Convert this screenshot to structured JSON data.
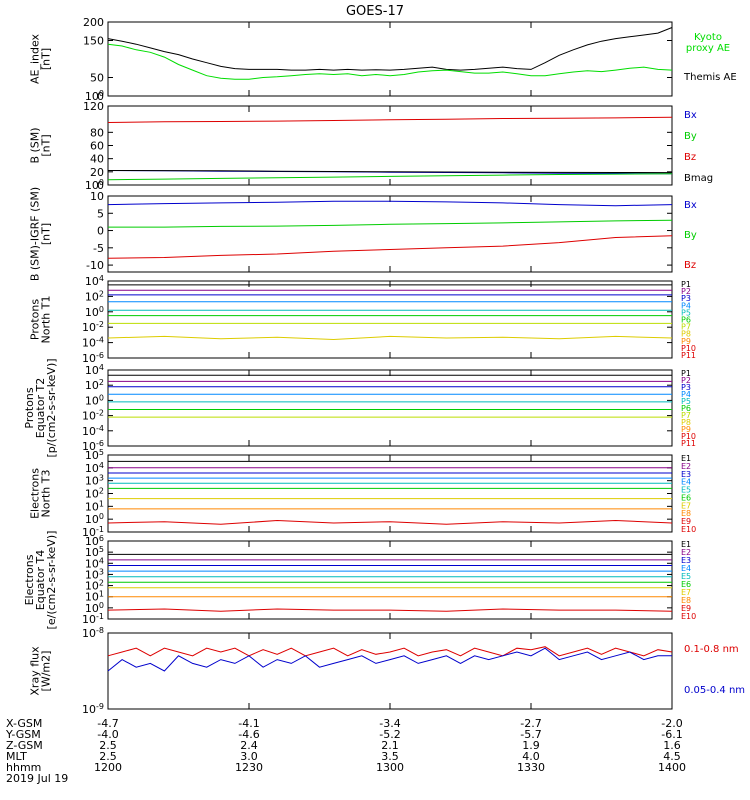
{
  "title": "GOES-17",
  "chart_data": [
    {
      "type": "line",
      "ylabel": [
        "AE_index",
        "[nT]"
      ],
      "ylim": [
        0,
        200
      ],
      "yticks": [
        "0",
        "50",
        "100",
        "150",
        "200"
      ],
      "x_hhmm": [
        1200,
        1203,
        1206,
        1209,
        1212,
        1215,
        1218,
        1221,
        1224,
        1227,
        1230,
        1233,
        1236,
        1239,
        1242,
        1245,
        1248,
        1251,
        1254,
        1257,
        1300,
        1303,
        1306,
        1309,
        1312,
        1315,
        1318,
        1321,
        1324,
        1327,
        1330,
        1333,
        1336,
        1339,
        1342,
        1345,
        1348,
        1351,
        1354,
        1357,
        1400
      ],
      "series": [
        {
          "name": "Themis AE",
          "color": "#000000",
          "values": [
            155,
            148,
            140,
            130,
            120,
            112,
            100,
            90,
            80,
            74,
            72,
            72,
            72,
            70,
            70,
            72,
            70,
            72,
            70,
            71,
            70,
            72,
            75,
            78,
            72,
            70,
            72,
            75,
            78,
            74,
            72,
            90,
            110,
            125,
            138,
            148,
            155,
            160,
            165,
            170,
            185
          ]
        },
        {
          "name": "Kyoto proxy AE",
          "color": "#00dd00",
          "values": [
            140,
            135,
            125,
            118,
            105,
            85,
            70,
            55,
            48,
            45,
            45,
            50,
            52,
            55,
            58,
            60,
            58,
            60,
            55,
            58,
            55,
            58,
            65,
            68,
            70,
            66,
            62,
            62,
            65,
            60,
            55,
            55,
            60,
            65,
            68,
            66,
            70,
            75,
            78,
            72,
            70
          ]
        }
      ]
    },
    {
      "type": "line",
      "ylabel": [
        "B (SM)",
        "[nT]"
      ],
      "ylim": [
        0,
        120
      ],
      "yticks": [
        "0",
        "20",
        "40",
        "60",
        "80",
        "100",
        "120"
      ],
      "series": [
        {
          "name": "Bx",
          "color": "#0000cc",
          "values": [
            22,
            21.5,
            21,
            20.5,
            20,
            19.5,
            19,
            18.5,
            18,
            17.5,
            17
          ]
        },
        {
          "name": "By",
          "color": "#00cc00",
          "values": [
            8,
            9,
            10,
            11,
            12,
            13,
            14,
            15,
            16,
            16.5,
            17
          ]
        },
        {
          "name": "Bz",
          "color": "#dd0000",
          "values": [
            95,
            96,
            96.5,
            97,
            98,
            99,
            100,
            101,
            101.5,
            102,
            103
          ]
        },
        {
          "name": "Bmag",
          "color": "#000000",
          "values": [
            22,
            21.8,
            21.5,
            21,
            20.5,
            20,
            19.8,
            19.5,
            19.2,
            19,
            18.8
          ]
        }
      ]
    },
    {
      "type": "line",
      "ylabel": [
        "B (SM)-IGRF (SM)",
        "[nT]"
      ],
      "ylim": [
        -12,
        10
      ],
      "yticks": [
        "-10",
        "-5",
        "0",
        "5",
        "10"
      ],
      "series": [
        {
          "name": "Bx",
          "color": "#0000cc",
          "values": [
            7.5,
            7.8,
            8,
            8.2,
            8.5,
            8.5,
            8.3,
            8,
            7.5,
            7.2,
            7.5
          ]
        },
        {
          "name": "By",
          "color": "#00cc00",
          "values": [
            1,
            1,
            1.2,
            1.3,
            1.5,
            1.8,
            2,
            2.2,
            2.5,
            2.8,
            3
          ]
        },
        {
          "name": "Bz",
          "color": "#dd0000",
          "values": [
            -8,
            -7.8,
            -7.2,
            -6.8,
            -6,
            -5.5,
            -5,
            -4.5,
            -3.5,
            -2,
            -1.5
          ]
        }
      ]
    },
    {
      "type": "line",
      "ylabel": [
        "Protons",
        "North T1"
      ],
      "yscale": "log",
      "ylim": [
        -6,
        4
      ],
      "yticks": [
        "10-6",
        "10-4",
        "10-2",
        "100",
        "102",
        "104"
      ],
      "series": [
        {
          "name": "P1",
          "color": "#000000",
          "values": [
            3.5,
            3.5
          ]
        },
        {
          "name": "P2",
          "color": "#880088",
          "values": [
            2.8,
            2.8
          ]
        },
        {
          "name": "P3",
          "color": "#0000cc",
          "values": [
            2.2,
            2.2
          ]
        },
        {
          "name": "P4",
          "color": "#0088ff",
          "values": [
            1.3,
            1.3
          ]
        },
        {
          "name": "P5",
          "color": "#00bbbb",
          "values": [
            0.2,
            0.2
          ]
        },
        {
          "name": "P6",
          "color": "#00cc00",
          "values": [
            -0.5,
            -0.5
          ]
        },
        {
          "name": "P7",
          "color": "#bbdd00",
          "values": [
            -1.5,
            -1.5
          ]
        },
        {
          "name": "P8",
          "color": "#ddcc00",
          "values": [
            -3.4,
            -3.2,
            -3.5,
            -3.3,
            -3.6,
            -3.2,
            -3.4,
            -3.3,
            -3.5,
            -3.2,
            -3.4
          ]
        }
      ],
      "legend": [
        "P1",
        "P2",
        "P3",
        "P4",
        "P5",
        "P6",
        "P7",
        "P8",
        "P9",
        "P10",
        "P11"
      ]
    },
    {
      "type": "line",
      "ylabel": [
        "Protons",
        "Equator T2",
        "[p/(cm2-s-sr-keV)]"
      ],
      "yscale": "log",
      "ylim": [
        -6,
        4
      ],
      "yticks": [
        "10-6",
        "10-4",
        "10-2",
        "100",
        "102",
        "104"
      ],
      "series": [
        {
          "name": "P1",
          "color": "#000000",
          "values": [
            3.3,
            3.3
          ]
        },
        {
          "name": "P2",
          "color": "#880088",
          "values": [
            2.5,
            2.5
          ]
        },
        {
          "name": "P3",
          "color": "#0000cc",
          "values": [
            1.8,
            1.8
          ]
        },
        {
          "name": "P4",
          "color": "#0088ff",
          "values": [
            0.8,
            0.8
          ]
        },
        {
          "name": "P5",
          "color": "#00bbbb",
          "values": [
            -0.2,
            -0.2
          ]
        },
        {
          "name": "P6",
          "color": "#00cc00",
          "values": [
            -1.2,
            -1.2
          ]
        },
        {
          "name": "P7",
          "color": "#bbdd00",
          "values": [
            -2.2,
            -2.2
          ]
        }
      ],
      "legend": [
        "P1",
        "P2",
        "P3",
        "P4",
        "P5",
        "P6",
        "P7",
        "P8",
        "P9",
        "P10",
        "P11"
      ]
    },
    {
      "type": "line",
      "ylabel": [
        "Electrons",
        "North T3"
      ],
      "yscale": "log",
      "ylim": [
        -1,
        5
      ],
      "yticks": [
        "10-1",
        "100",
        "101",
        "102",
        "103",
        "104",
        "105"
      ],
      "series": [
        {
          "name": "E1",
          "color": "#000000",
          "values": [
            4.5,
            4.5
          ]
        },
        {
          "name": "E2",
          "color": "#880088",
          "values": [
            4,
            4
          ]
        },
        {
          "name": "E3",
          "color": "#0000cc",
          "values": [
            3.6,
            3.6
          ]
        },
        {
          "name": "E4",
          "color": "#0088ff",
          "values": [
            3.2,
            3.2
          ]
        },
        {
          "name": "E5",
          "color": "#00bbbb",
          "values": [
            2.8,
            2.8
          ]
        },
        {
          "name": "E6",
          "color": "#00cc00",
          "values": [
            2.4,
            2.4
          ]
        },
        {
          "name": "E7",
          "color": "#ddcc00",
          "values": [
            1.6,
            1.6
          ]
        },
        {
          "name": "E8",
          "color": "#ff8800",
          "values": [
            0.8,
            0.8
          ]
        },
        {
          "name": "E10",
          "color": "#dd0000",
          "values": [
            -0.3,
            -0.2,
            -0.4,
            -0.1,
            -0.3,
            -0.2,
            -0.4,
            -0.2,
            -0.3,
            -0.1,
            -0.3
          ]
        }
      ],
      "legend": [
        "E1",
        "E2",
        "E3",
        "E4",
        "E5",
        "E6",
        "E7",
        "E8",
        "E9",
        "E10"
      ]
    },
    {
      "type": "line",
      "ylabel": [
        "Electrons",
        "Equator T4",
        "[e/(cm2-s-sr-keV)]"
      ],
      "yscale": "log",
      "ylim": [
        -1,
        6
      ],
      "yticks": [
        "10-1",
        "100",
        "101",
        "102",
        "103",
        "104",
        "105",
        "106"
      ],
      "series": [
        {
          "name": "E1",
          "color": "#000000",
          "values": [
            4.8,
            4.8
          ]
        },
        {
          "name": "E2",
          "color": "#880088",
          "values": [
            4.3,
            4.3
          ]
        },
        {
          "name": "E3",
          "color": "#0000cc",
          "values": [
            3.8,
            3.8
          ]
        },
        {
          "name": "E4",
          "color": "#0088ff",
          "values": [
            3.3,
            3.3
          ]
        },
        {
          "name": "E5",
          "color": "#00bbbb",
          "values": [
            2.8,
            2.8
          ]
        },
        {
          "name": "E6",
          "color": "#00cc00",
          "values": [
            2.3,
            2.3
          ]
        },
        {
          "name": "E7",
          "color": "#ddcc00",
          "values": [
            1.8,
            1.8
          ]
        },
        {
          "name": "E8",
          "color": "#ff8800",
          "values": [
            1,
            1
          ]
        },
        {
          "name": "E10",
          "color": "#dd0000",
          "values": [
            -0.2,
            -0.1,
            -0.3,
            -0.1,
            -0.2,
            -0.2,
            -0.3,
            -0.1,
            -0.2,
            -0.2,
            -0.3
          ]
        }
      ],
      "legend": [
        "E1",
        "E2",
        "E3",
        "E4",
        "E5",
        "E6",
        "E7",
        "E8",
        "E9",
        "E10"
      ]
    },
    {
      "type": "line",
      "ylabel": [
        "Xray flux",
        "[W/m2]"
      ],
      "yscale": "log",
      "ylim": [
        -9,
        -8
      ],
      "yticks": [
        "10-9",
        "10-8"
      ],
      "series": [
        {
          "name": "0.1-0.8 nm",
          "color": "#dd0000",
          "values": [
            -8.3,
            -8.25,
            -8.2,
            -8.3,
            -8.2,
            -8.25,
            -8.3,
            -8.2,
            -8.25,
            -8.2,
            -8.3,
            -8.22,
            -8.28,
            -8.2,
            -8.3,
            -8.25,
            -8.2,
            -8.3,
            -8.22,
            -8.28,
            -8.25,
            -8.2,
            -8.3,
            -8.25,
            -8.22,
            -8.3,
            -8.2,
            -8.25,
            -8.3,
            -8.2,
            -8.22,
            -8.18,
            -8.3,
            -8.25,
            -8.2,
            -8.28,
            -8.2,
            -8.25,
            -8.3,
            -8.22,
            -8.25
          ]
        },
        {
          "name": "0.05-0.4 nm",
          "color": "#0000cc",
          "values": [
            -8.5,
            -8.35,
            -8.45,
            -8.4,
            -8.5,
            -8.3,
            -8.4,
            -8.45,
            -8.35,
            -8.4,
            -8.3,
            -8.45,
            -8.35,
            -8.4,
            -8.3,
            -8.45,
            -8.4,
            -8.35,
            -8.3,
            -8.4,
            -8.35,
            -8.3,
            -8.4,
            -8.35,
            -8.3,
            -8.4,
            -8.3,
            -8.35,
            -8.3,
            -8.25,
            -8.3,
            -8.2,
            -8.35,
            -8.3,
            -8.25,
            -8.35,
            -8.3,
            -8.25,
            -8.35,
            -8.3,
            -8.3
          ]
        }
      ]
    }
  ],
  "ephemeris": {
    "labels": [
      "X-GSM",
      "Y-GSM",
      "Z-GSM",
      "MLT",
      "hhmm",
      "2019 Jul 19"
    ],
    "columns": [
      [
        "-4.7",
        "-4.0",
        "2.5",
        "2.5",
        "1200"
      ],
      [
        "-4.1",
        "-4.6",
        "2.4",
        "3.0",
        "1230"
      ],
      [
        "-3.4",
        "-5.2",
        "2.1",
        "3.5",
        "1300"
      ],
      [
        "-2.7",
        "-5.7",
        "1.9",
        "4.0",
        "1330"
      ],
      [
        "-2.0",
        "-6.1",
        "1.6",
        "4.5",
        "1400"
      ]
    ]
  }
}
